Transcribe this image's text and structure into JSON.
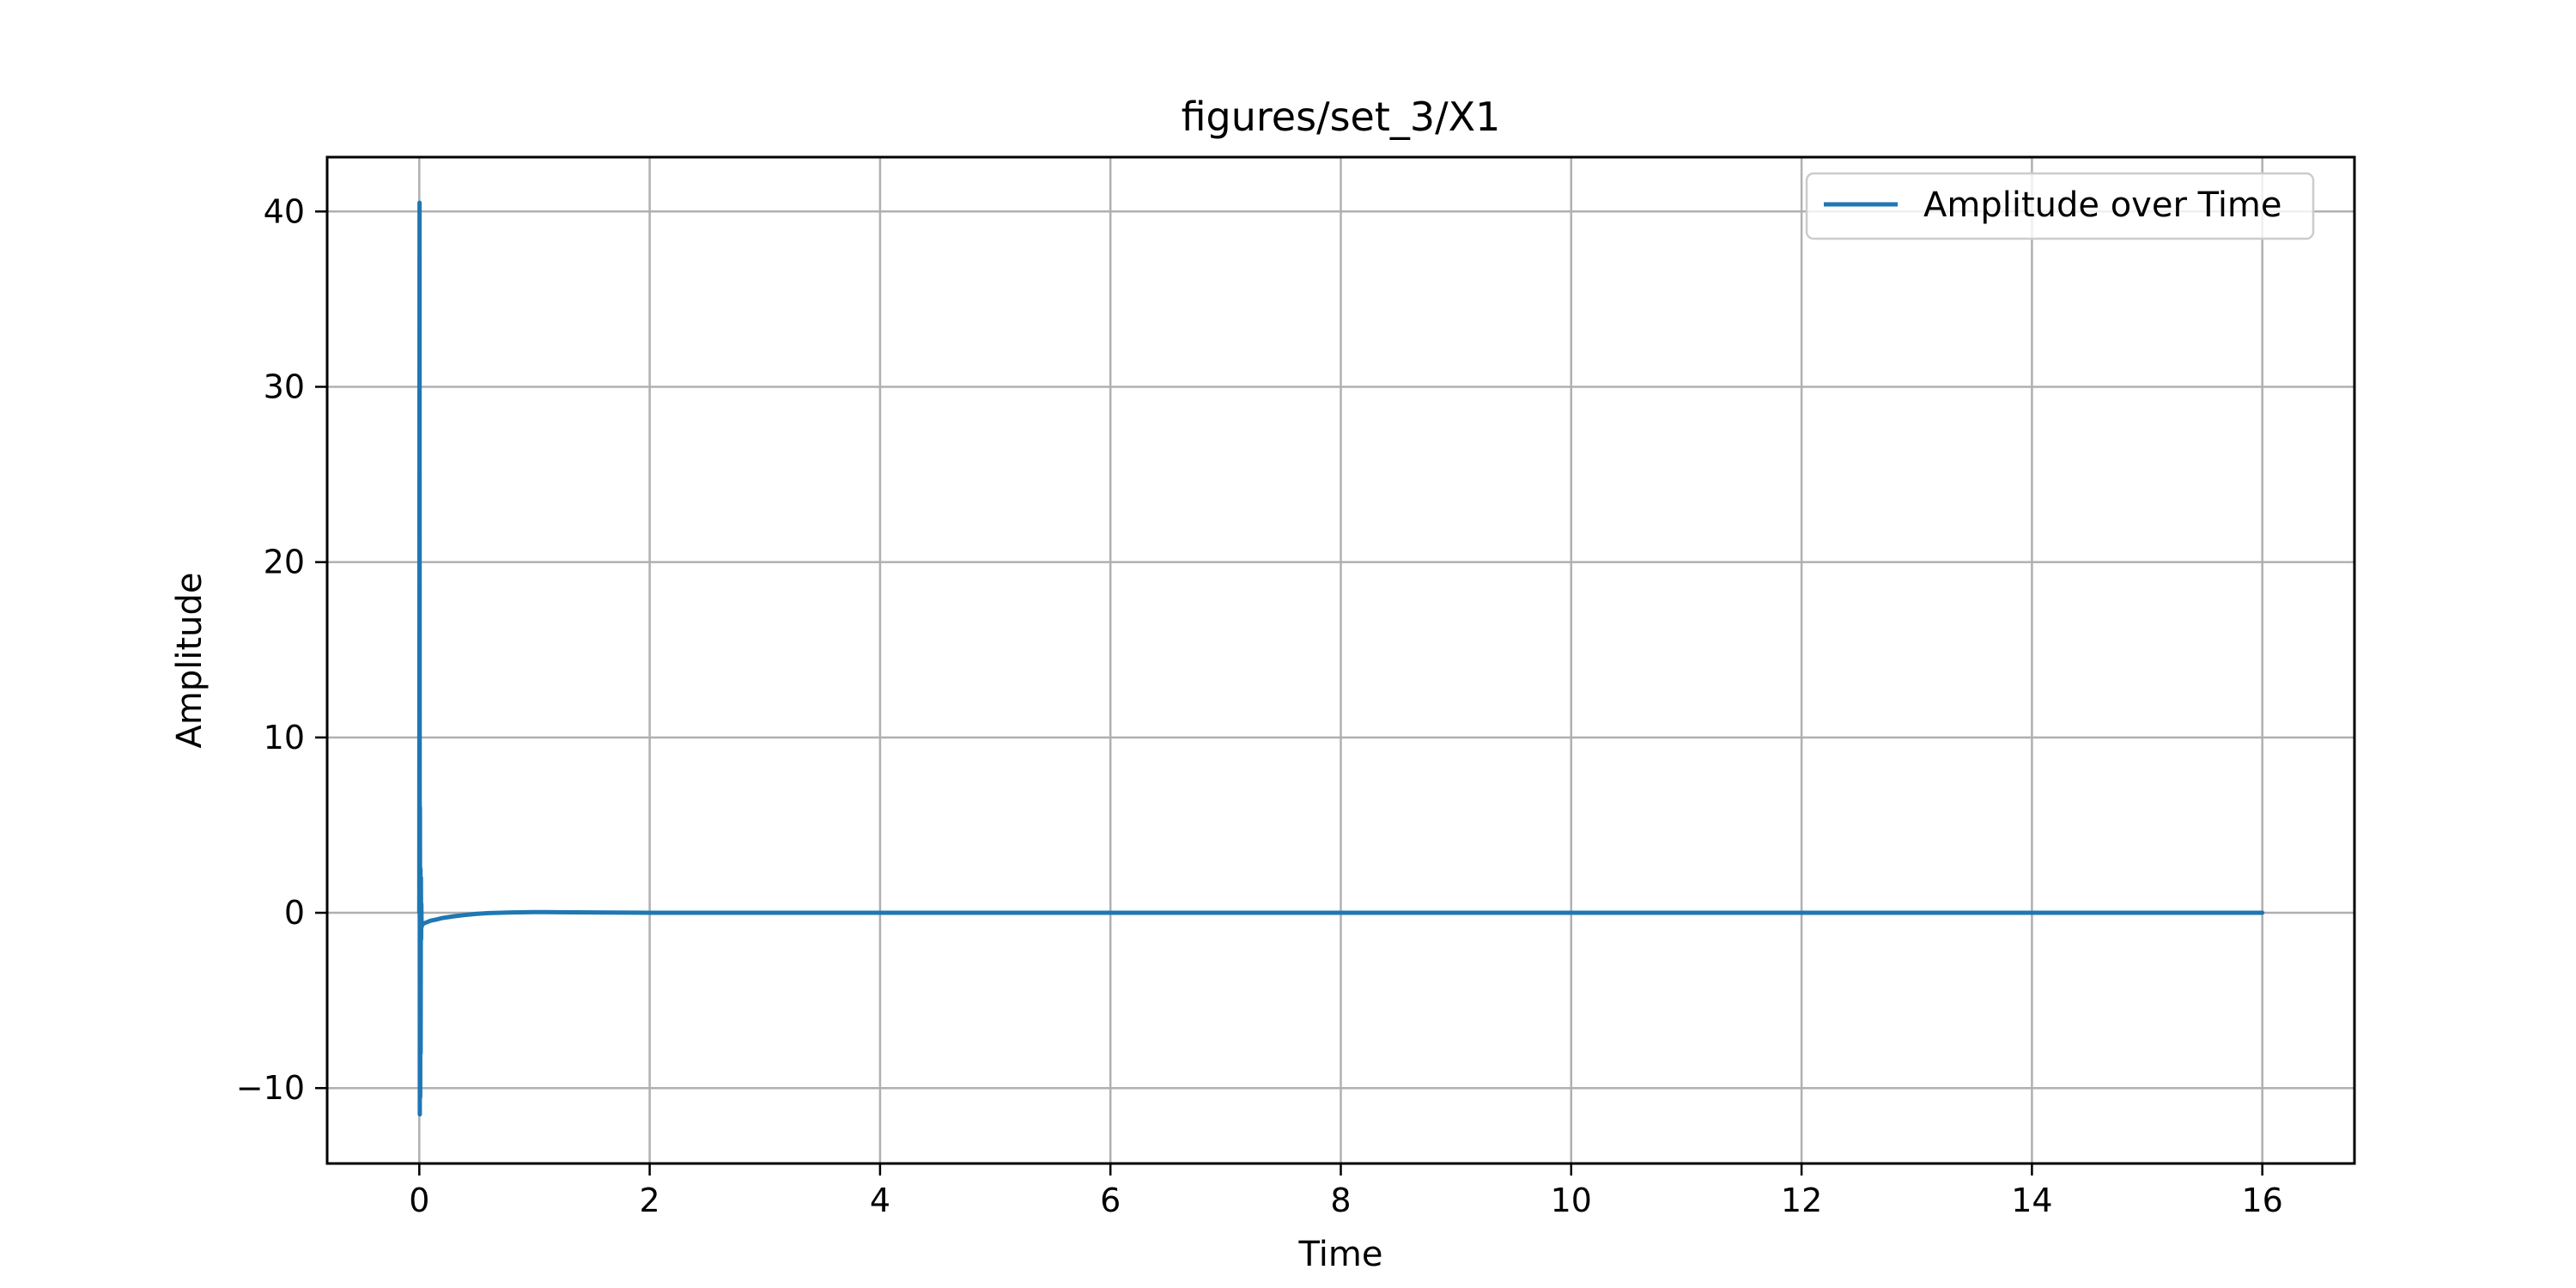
{
  "chart_data": {
    "type": "line",
    "title": "figures/set_3/X1",
    "xlabel": "Time",
    "ylabel": "Amplitude",
    "xlim": [
      -0.8,
      16.8
    ],
    "ylim": [
      -14.3,
      43.1
    ],
    "xticks": [
      0,
      2,
      4,
      6,
      8,
      10,
      12,
      14,
      16
    ],
    "yticks": [
      -10,
      0,
      10,
      20,
      30,
      40
    ],
    "xtick_labels": [
      "0",
      "2",
      "4",
      "6",
      "8",
      "10",
      "12",
      "14",
      "16"
    ],
    "ytick_labels": [
      "−10",
      "0",
      "10",
      "20",
      "30",
      "40"
    ],
    "grid": true,
    "legend": {
      "position": "top-right"
    },
    "series": [
      {
        "name": "Amplitude over Time",
        "color": "#1f77b4",
        "x": [
          0,
          0.002,
          0.004,
          0.006,
          0.008,
          0.01,
          0.012,
          0.014,
          0.016,
          0.018,
          0.02,
          0.025,
          0.03,
          0.04,
          0.06,
          0.1,
          0.15,
          0.2,
          0.3,
          0.4,
          0.5,
          0.6,
          0.8,
          1.0,
          1.2,
          1.5,
          2.0,
          3.0,
          4.0,
          5.0,
          6.0,
          7.0,
          8.0,
          9.0,
          10.0,
          11.0,
          12.0,
          13.0,
          14.0,
          15.0,
          16.0
        ],
        "y": [
          0,
          40.5,
          -11.5,
          6.0,
          -10.5,
          2.5,
          -8.0,
          2.0,
          -1.5,
          0.5,
          -0.8,
          -0.7,
          -0.65,
          -0.6,
          -0.55,
          -0.45,
          -0.38,
          -0.3,
          -0.2,
          -0.12,
          -0.06,
          -0.02,
          0.02,
          0.04,
          0.03,
          0.02,
          0.0,
          0.0,
          0.0,
          0.0,
          0.0,
          0.0,
          0.0,
          0.0,
          0.0,
          0.0,
          0.0,
          0.0,
          0.0,
          0.0,
          0.0
        ]
      }
    ]
  }
}
